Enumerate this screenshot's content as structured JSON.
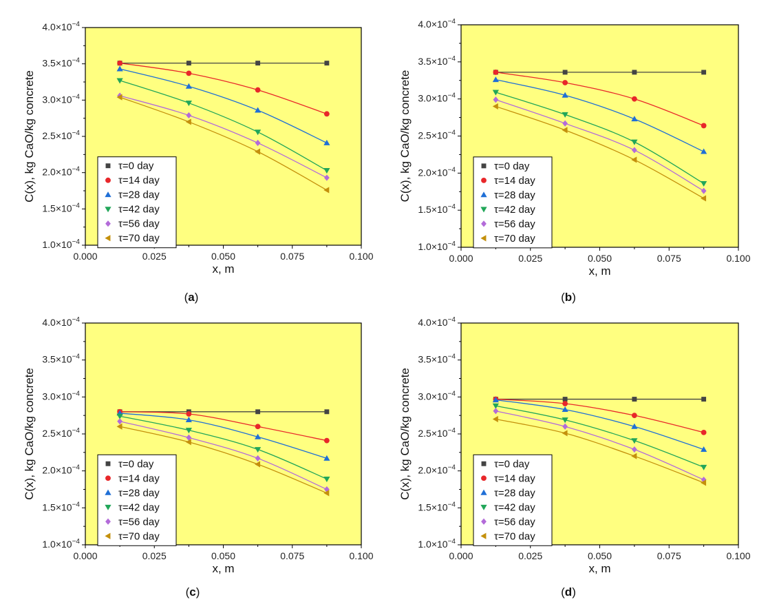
{
  "colors": {
    "plot_bg": "#FFFF80",
    "tau0": "#444444",
    "tau14": "#E8272A",
    "tau28": "#1F6FD6",
    "tau42": "#21A659",
    "tau56": "#B36BD9",
    "tau70": "#C4900C"
  },
  "chart_data": [
    {
      "type": "scatter",
      "panel": "a",
      "xlabel": "x, m",
      "ylabel": "C(x), kg CaO/kg concrete",
      "xlim": [
        0,
        0.1
      ],
      "ylim": [
        0.0001,
        0.0004
      ],
      "xticks": [
        "0.000",
        "0.025",
        "0.050",
        "0.075",
        "0.100"
      ],
      "yticks": [
        "1.0",
        "1.5",
        "2.0",
        "2.5",
        "3.0",
        "3.5",
        "4.0"
      ],
      "ytick_exp": "×10",
      "ytick_sup": "−4",
      "x": [
        0.0125,
        0.0375,
        0.0625,
        0.0875
      ],
      "legend_position": "bottom-left",
      "series": [
        {
          "name": "τ=0 day",
          "marker": "square",
          "values": [
            0.000351,
            0.000351,
            0.000351,
            0.000351
          ]
        },
        {
          "name": "τ=14 day",
          "marker": "circle",
          "values": [
            0.000351,
            0.000337,
            0.000314,
            0.000281
          ]
        },
        {
          "name": "τ=28 day",
          "marker": "triangle-up",
          "values": [
            0.000343,
            0.000319,
            0.000286,
            0.000241
          ]
        },
        {
          "name": "τ=42 day",
          "marker": "triangle-down",
          "values": [
            0.000327,
            0.000296,
            0.000256,
            0.000203
          ]
        },
        {
          "name": "τ=56 day",
          "marker": "diamond",
          "values": [
            0.000306,
            0.000279,
            0.000241,
            0.000193
          ]
        },
        {
          "name": "τ=70 day",
          "marker": "triangle-left",
          "values": [
            0.000304,
            0.00027,
            0.000229,
            0.000176
          ]
        }
      ]
    },
    {
      "type": "scatter",
      "panel": "b",
      "xlabel": "x, m",
      "ylabel": "C(x), kg CaO/kg concrete",
      "xlim": [
        0,
        0.1
      ],
      "ylim": [
        0.0001,
        0.0004
      ],
      "xticks": [
        "0.000",
        "0.025",
        "0.050",
        "0.075",
        "0.100"
      ],
      "yticks": [
        "1.0",
        "1.5",
        "2.0",
        "2.5",
        "3.0",
        "3.5",
        "4.0"
      ],
      "ytick_exp": "×10",
      "ytick_sup": "−4",
      "x": [
        0.0125,
        0.0375,
        0.0625,
        0.0875
      ],
      "legend_position": "bottom-left",
      "series": [
        {
          "name": "τ=0 day",
          "marker": "square",
          "values": [
            0.000336,
            0.000336,
            0.000336,
            0.000336
          ]
        },
        {
          "name": "τ=14 day",
          "marker": "circle",
          "values": [
            0.000336,
            0.000322,
            0.0003,
            0.000264
          ]
        },
        {
          "name": "τ=28 day",
          "marker": "triangle-up",
          "values": [
            0.000326,
            0.000305,
            0.000273,
            0.000229
          ]
        },
        {
          "name": "τ=42 day",
          "marker": "triangle-down",
          "values": [
            0.000309,
            0.000279,
            0.000242,
            0.000186
          ]
        },
        {
          "name": "τ=56 day",
          "marker": "diamond",
          "values": [
            0.000299,
            0.000267,
            0.000231,
            0.000176
          ]
        },
        {
          "name": "τ=70 day",
          "marker": "triangle-left",
          "values": [
            0.00029,
            0.000258,
            0.000218,
            0.000166
          ]
        }
      ]
    },
    {
      "type": "scatter",
      "panel": "c",
      "xlabel": "x, m",
      "ylabel": "C(x), kg CaO/kg concrete",
      "xlim": [
        0,
        0.1
      ],
      "ylim": [
        0.0001,
        0.0004
      ],
      "xticks": [
        "0.000",
        "0.025",
        "0.050",
        "0.075",
        "0.100"
      ],
      "yticks": [
        "1.0",
        "1.5",
        "2.0",
        "2.5",
        "3.0",
        "3.5",
        "4.0"
      ],
      "ytick_exp": "×10",
      "ytick_sup": "−4",
      "x": [
        0.0125,
        0.0375,
        0.0625,
        0.0875
      ],
      "legend_position": "bottom-left",
      "series": [
        {
          "name": "τ=0 day",
          "marker": "square",
          "values": [
            0.00028,
            0.00028,
            0.00028,
            0.00028
          ]
        },
        {
          "name": "τ=14 day",
          "marker": "circle",
          "values": [
            0.00028,
            0.000277,
            0.00026,
            0.000241
          ]
        },
        {
          "name": "τ=28 day",
          "marker": "triangle-up",
          "values": [
            0.000278,
            0.000269,
            0.000246,
            0.000217
          ]
        },
        {
          "name": "τ=42 day",
          "marker": "triangle-down",
          "values": [
            0.000274,
            0.000255,
            0.000229,
            0.000189
          ]
        },
        {
          "name": "τ=56 day",
          "marker": "diamond",
          "values": [
            0.000267,
            0.000245,
            0.000217,
            0.000175
          ]
        },
        {
          "name": "τ=70 day",
          "marker": "triangle-left",
          "values": [
            0.00026,
            0.000239,
            0.000209,
            0.00017
          ]
        }
      ]
    },
    {
      "type": "scatter",
      "panel": "d",
      "xlabel": "x, m",
      "ylabel": "C(x), kg CaO/kg concrete",
      "xlim": [
        0,
        0.1
      ],
      "ylim": [
        0.0001,
        0.0004
      ],
      "xticks": [
        "0.000",
        "0.025",
        "0.050",
        "0.075",
        "0.100"
      ],
      "yticks": [
        "1.0",
        "1.5",
        "2.0",
        "2.5",
        "3.0",
        "3.5",
        "4.0"
      ],
      "ytick_exp": "×10",
      "ytick_sup": "−4",
      "x": [
        0.0125,
        0.0375,
        0.0625,
        0.0875
      ],
      "legend_position": "bottom-left",
      "series": [
        {
          "name": "τ=0 day",
          "marker": "square",
          "values": [
            0.000297,
            0.000297,
            0.000297,
            0.000297
          ]
        },
        {
          "name": "τ=14 day",
          "marker": "circle",
          "values": [
            0.000297,
            0.000291,
            0.000275,
            0.000252
          ]
        },
        {
          "name": "τ=28 day",
          "marker": "triangle-up",
          "values": [
            0.000296,
            0.000283,
            0.00026,
            0.000229
          ]
        },
        {
          "name": "τ=42 day",
          "marker": "triangle-down",
          "values": [
            0.000288,
            0.000269,
            0.000241,
            0.000205
          ]
        },
        {
          "name": "τ=56 day",
          "marker": "diamond",
          "values": [
            0.000281,
            0.00026,
            0.000229,
            0.000188
          ]
        },
        {
          "name": "τ=70 day",
          "marker": "triangle-left",
          "values": [
            0.00027,
            0.000251,
            0.00022,
            0.000184
          ]
        }
      ]
    }
  ]
}
